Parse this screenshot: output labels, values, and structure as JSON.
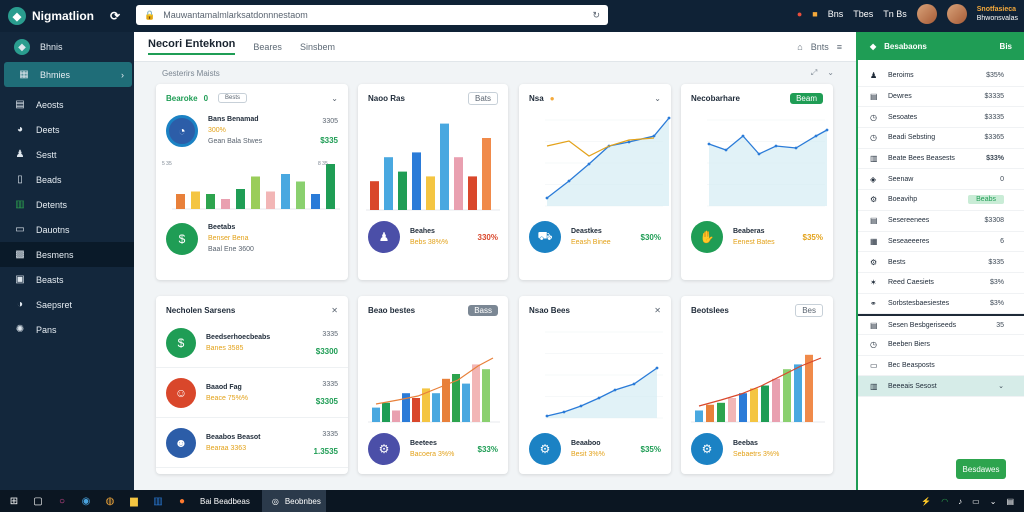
{
  "app": {
    "title": "Nigmatlion"
  },
  "address_bar": {
    "url": "Mauwantamalmlarksatdonnnestaom"
  },
  "top_right": {
    "items": [
      "Bns",
      "Tbes",
      "Tn Bs"
    ],
    "user_name": "Snotfasieca",
    "user_sub": "Bhwonsvalas",
    "colors": {
      "accent": "#f4a93b"
    }
  },
  "sidebar": {
    "header": "Bhnis",
    "items": [
      {
        "label": "Bhmies",
        "icon": "grid-icon"
      },
      {
        "label": "Aeosts",
        "icon": "table-icon"
      },
      {
        "label": "Deets",
        "icon": "globe-icon"
      },
      {
        "label": "Sestt",
        "icon": "users-icon"
      },
      {
        "label": "Beads",
        "icon": "document-icon"
      },
      {
        "label": "Detents",
        "icon": "chart-icon"
      },
      {
        "label": "Dauotns",
        "icon": "folder-icon"
      },
      {
        "label": "Besmens",
        "icon": "settings-icon"
      },
      {
        "label": "Beasts",
        "icon": "clipboard-icon"
      },
      {
        "label": "Saepsret",
        "icon": "globe-icon"
      },
      {
        "label": "Pans",
        "icon": "gear-icon"
      }
    ]
  },
  "main": {
    "title": "Necori Enteknon",
    "tabs": [
      "Beares",
      "Sinsbem"
    ],
    "header_right": [
      "Bnts"
    ],
    "subtitle": "Gesterirs Maists"
  },
  "cards": {
    "c1": {
      "title": "Bearoke",
      "pill": "Bests",
      "pill_prefix": "0",
      "stat1": {
        "title": "Bans Benamad",
        "sub": "300%",
        "note": "Gean Bala Stwes",
        "num1": "3305",
        "num2": "$335"
      },
      "stat2": {
        "title": "Beetabs",
        "sub": "Benser Bena",
        "note": "Baal Ene 3600"
      },
      "chart_labels": [
        "5 35",
        "8 35"
      ]
    },
    "c2": {
      "title": "Naoo Ras",
      "pill": "Bats",
      "stat": {
        "title": "Beahes",
        "sub": "Bebs 38%%",
        "val": "330%"
      }
    },
    "c3": {
      "title": "Nsa",
      "stat": {
        "title": "Deastkes",
        "sub": "Eeash Binee",
        "val": "$30%"
      }
    },
    "c4": {
      "title": "Necobarhare",
      "pill": "Beam",
      "stat": {
        "title": "Beaberas",
        "sub": "Eenest Bates",
        "val": "$35%"
      }
    },
    "c5": {
      "title": "Necholen Sarsens",
      "rows": [
        {
          "title": "Beedserhoecbeabs",
          "sub": "Banes 3585",
          "val": "$3300",
          "num": "3335"
        },
        {
          "title": "Baaod Fag",
          "sub": "Beace 75%%",
          "val": "$3305",
          "num": "3335"
        },
        {
          "title": "Beaabos Beasot",
          "sub": "Bearaa 3363",
          "val": "1.3535",
          "num": "3335"
        }
      ]
    },
    "c6": {
      "title": "Beao bestes",
      "pill": "Bass",
      "stat": {
        "title": "Beetees",
        "sub": "Bacoera 3%%",
        "val": "$33%"
      }
    },
    "c7": {
      "title": "Nsao Bees",
      "stat": {
        "title": "Beaaboo",
        "sub": "Besit 3%%",
        "val": "$35%"
      }
    },
    "c8": {
      "title": "Beotslees",
      "pill": "Bes",
      "stat": {
        "title": "Beebas",
        "sub": "Sebaetrs 3%%",
        "val": ""
      }
    }
  },
  "right_panel": {
    "header": "Besabaons",
    "header_right": "Bis",
    "rows": [
      {
        "label": "Beroims",
        "val": "$35%",
        "icon": "user-icon"
      },
      {
        "label": "Dewres",
        "val": "$3335",
        "icon": "table-icon"
      },
      {
        "label": "Sesoates",
        "val": "$3335",
        "icon": "clock-icon"
      },
      {
        "label": "Beadi Sebsting",
        "val": "$3365",
        "icon": "clock-icon"
      },
      {
        "label": "Beate Bees Beasests",
        "val": "$33%",
        "icon": "chart-icon"
      },
      {
        "label": "Seenaw",
        "val": "0",
        "icon": "tag-icon"
      },
      {
        "label": "Boeavihp",
        "val": "Beabs",
        "icon": "gear-icon"
      },
      {
        "label": "Sesereenees",
        "val": "$3308",
        "icon": "table-icon"
      },
      {
        "label": "Seseaeeeres",
        "val": "6",
        "icon": "calendar-icon"
      },
      {
        "label": "Bests",
        "val": "$335",
        "icon": "gear-icon"
      },
      {
        "label": "Reed Caesiets",
        "val": "$3%",
        "icon": "star-icon"
      },
      {
        "label": "Sorbstesbaesiestes",
        "val": "$3%",
        "icon": "link-icon"
      },
      {
        "label": "Sesen Besbgeriseeds",
        "val": "35",
        "icon": "table-icon"
      },
      {
        "label": "Beeben Biers",
        "val": "",
        "icon": "clock-icon"
      },
      {
        "label": "Bec Beasposts",
        "val": "",
        "icon": "folder-icon"
      },
      {
        "label": "Beeeais Sesost",
        "val": "",
        "icon": "chart-icon"
      }
    ],
    "button": "Besdawes"
  },
  "taskbar": {
    "app1": "Bai Beadbeas",
    "app2": "Beobnbes"
  },
  "colors": {
    "green": "#1f9d55",
    "teal": "#2a9d8f",
    "navy": "#0f2236",
    "orange": "#f4a93b",
    "yellow": "#e3a21a"
  }
}
